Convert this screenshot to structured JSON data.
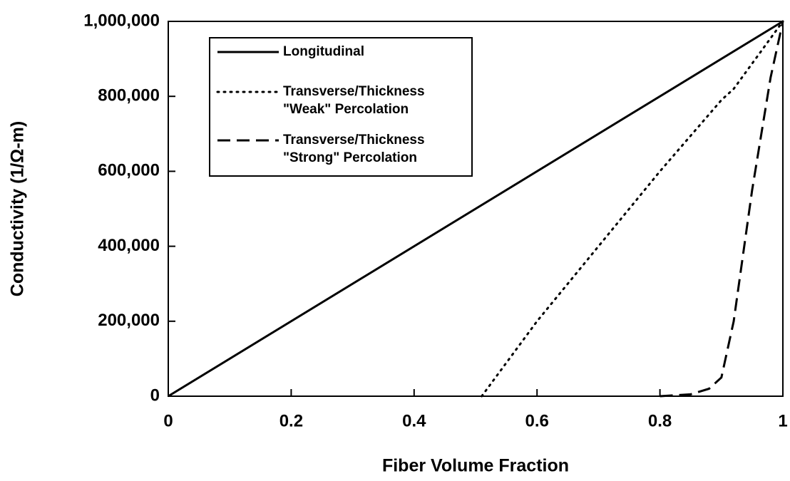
{
  "chart_data": {
    "type": "line",
    "xlabel": "Fiber Volume Fraction",
    "ylabel": "Conductivity (1/Ω-m)",
    "xlim": [
      0,
      1
    ],
    "xticks": [
      0,
      0.2,
      0.4,
      0.6,
      0.8,
      1
    ],
    "ylim": [
      0,
      1000000
    ],
    "yticks": [
      0,
      {
        "value": 200000,
        "label": "200,000"
      },
      {
        "value": 400000,
        "label": "400,000"
      },
      {
        "value": 600000,
        "label": "600,000"
      },
      {
        "value": 800000,
        "label": "800,000"
      },
      {
        "value": 1000000,
        "label": "1,000,000"
      }
    ],
    "grid": false,
    "legend": "upper left",
    "series": [
      {
        "name": "Longitudinal",
        "color": "#000000",
        "dash": "solid",
        "x": [
          0,
          1
        ],
        "values": [
          0,
          1000000
        ]
      },
      {
        "name": "Transverse/Thickness\n\"Weak\" Percolation",
        "color": "#000000",
        "dash": "dotted",
        "x": [
          0.51,
          0.6,
          0.7,
          0.8,
          0.9,
          0.92,
          1
        ],
        "values": [
          0,
          200000,
          400000,
          600000,
          790000,
          820000,
          1000000
        ]
      },
      {
        "name": "Transverse/Thickness\n\"Strong\" Percolation",
        "color": "#000000",
        "dash": "dashed",
        "x": [
          0.8,
          0.85,
          0.88,
          0.9,
          0.92,
          0.95,
          0.98,
          1
        ],
        "values": [
          0,
          5000,
          20000,
          50000,
          200000,
          550000,
          850000,
          1000000
        ]
      }
    ]
  }
}
